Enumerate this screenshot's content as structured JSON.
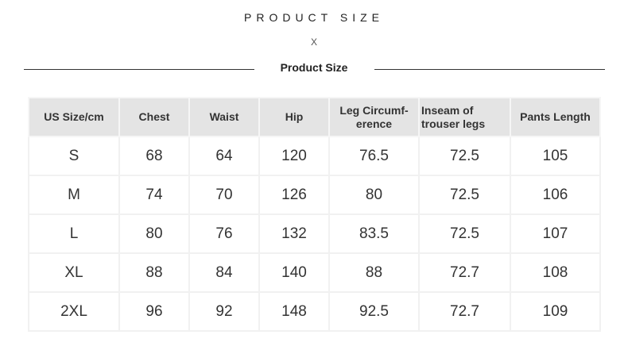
{
  "header": {
    "title": "PRODUCT SIZE",
    "divider_mark": "X",
    "subtitle": "Product Size"
  },
  "table": {
    "columns": [
      "US Size/cm",
      "Chest",
      "Waist",
      "Hip",
      "Leg Circumf-erence",
      "Inseam of trouser legs",
      "Pants Length"
    ],
    "rows": [
      [
        "S",
        "68",
        "64",
        "120",
        "76.5",
        "72.5",
        "105"
      ],
      [
        "M",
        "74",
        "70",
        "126",
        "80",
        "72.5",
        "106"
      ],
      [
        "L",
        "80",
        "76",
        "132",
        "83.5",
        "72.5",
        "107"
      ],
      [
        "XL",
        "88",
        "84",
        "140",
        "88",
        "72.7",
        "108"
      ],
      [
        "2XL",
        "96",
        "92",
        "148",
        "92.5",
        "72.7",
        "109"
      ]
    ]
  }
}
